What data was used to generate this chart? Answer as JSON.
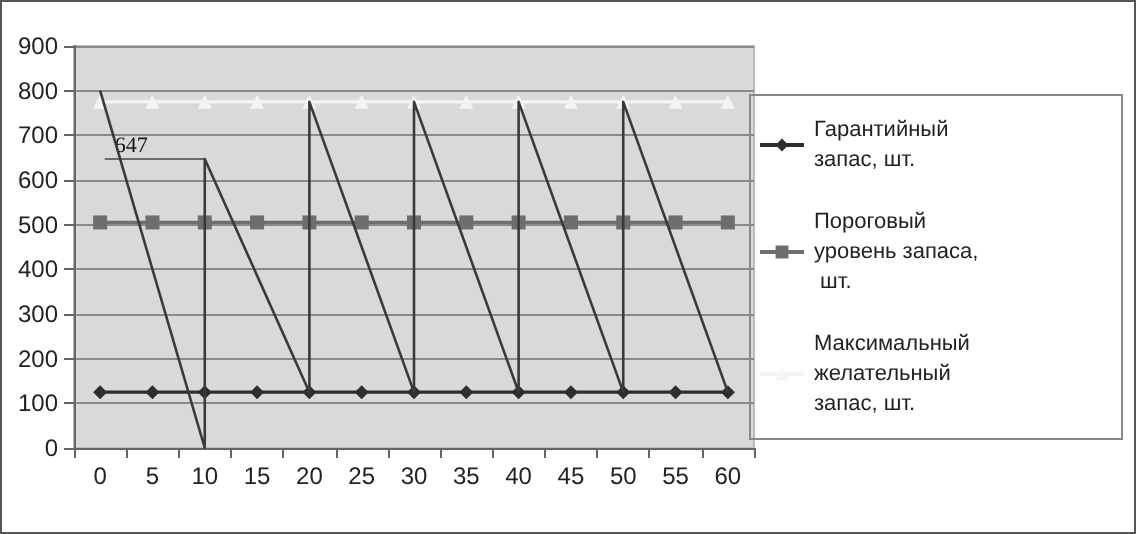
{
  "chart_data": {
    "type": "line",
    "categories": [
      "0",
      "5",
      "10",
      "15",
      "20",
      "25",
      "30",
      "35",
      "40",
      "45",
      "50",
      "55",
      "60"
    ],
    "series": [
      {
        "name": "Гарантийный запас, шт.",
        "color": "#2e2e2e",
        "marker": "diamond",
        "values": [
          125,
          125,
          125,
          125,
          125,
          125,
          125,
          125,
          125,
          125,
          125,
          125,
          125
        ]
      },
      {
        "name": "Пороговый уровень запаса, шт.",
        "color": "#6e6e6e",
        "marker": "square",
        "values": [
          505,
          505,
          505,
          505,
          505,
          505,
          505,
          505,
          505,
          505,
          505,
          505,
          505
        ]
      },
      {
        "name": "Максимальный желательный запас, шт.",
        "color": "#f4f4f4",
        "marker": "triangle",
        "values": [
          775,
          775,
          775,
          775,
          775,
          775,
          775,
          775,
          775,
          775,
          775,
          775,
          775
        ]
      },
      {
        "color": "#3a3a3a",
        "marker": "none",
        "x": [
          "0",
          "10",
          "10",
          "20",
          "20",
          "30",
          "30",
          "40",
          "40",
          "50",
          "50",
          "60"
        ],
        "values": [
          800,
          0,
          647,
          125,
          775,
          125,
          775,
          125,
          775,
          125,
          775,
          125
        ]
      }
    ],
    "annotations": [
      {
        "text": "647",
        "x": "10",
        "y": 647
      }
    ],
    "ylim": [
      0,
      900
    ],
    "yticks": [
      0,
      100,
      200,
      300,
      400,
      500,
      600,
      700,
      800,
      900
    ],
    "grid": "y",
    "legend": "right"
  }
}
